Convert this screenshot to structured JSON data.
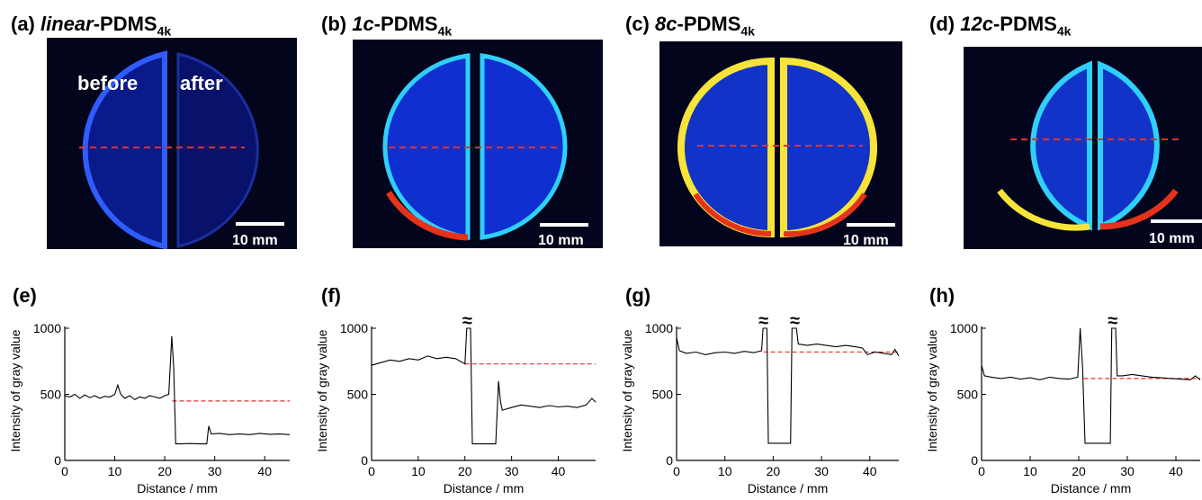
{
  "panels": {
    "a": {
      "letter": "(a)",
      "prefix": "linear",
      "base": "-PDMS",
      "sub": "4k"
    },
    "b": {
      "letter": "(b)",
      "prefix": "1c",
      "base": "-PDMS",
      "sub": "4k"
    },
    "c": {
      "letter": "(c)",
      "prefix": "8c",
      "base": "-PDMS",
      "sub": "4k"
    },
    "d": {
      "letter": "(d)",
      "prefix": "12c",
      "base": "-PDMS",
      "sub": "4k"
    }
  },
  "photo_labels": {
    "before": "before",
    "after": "after",
    "scale": "10 mm"
  },
  "colors": {
    "photo_bg": "#02051c",
    "disc_blue": "#1233c8",
    "rim_cyan": "#2fd0ff",
    "rim_green": "#9be23a",
    "rim_yellow": "#f6e43a",
    "rim_red": "#e5321c",
    "ref_line": "#e8312a",
    "trace": "#000000"
  },
  "chart_data": [
    {
      "label": "(e)",
      "type": "line",
      "xlabel": "Distance / mm",
      "ylabel": "Intensity of gray value",
      "xlim": [
        0,
        45
      ],
      "ylim": [
        0,
        1000
      ],
      "xticks": [
        0,
        10,
        20,
        30,
        40
      ],
      "yticks": [
        0,
        500,
        1000
      ],
      "break_marks": [],
      "reference_line": {
        "y": 450,
        "x_start": 21.5,
        "x_end": 45
      },
      "series": [
        {
          "values": [
            [
              0,
              490
            ],
            [
              1,
              480
            ],
            [
              2,
              500
            ],
            [
              3,
              470
            ],
            [
              4,
              495
            ],
            [
              5,
              475
            ],
            [
              6,
              490
            ],
            [
              7,
              470
            ],
            [
              8,
              485
            ],
            [
              9,
              480
            ],
            [
              10,
              500
            ],
            [
              10.6,
              570
            ],
            [
              11.2,
              500
            ],
            [
              12,
              470
            ],
            [
              13,
              490
            ],
            [
              14,
              460
            ],
            [
              15,
              480
            ],
            [
              16,
              470
            ],
            [
              17,
              490
            ],
            [
              18,
              480
            ],
            [
              19,
              470
            ],
            [
              20,
              490
            ],
            [
              20.8,
              500
            ],
            [
              21.4,
              940
            ],
            [
              21.8,
              700
            ],
            [
              22.2,
              125
            ],
            [
              23,
              125
            ],
            [
              25,
              128
            ],
            [
              27,
              125
            ],
            [
              28.4,
              125
            ],
            [
              28.8,
              260
            ],
            [
              29.3,
              200
            ],
            [
              31,
              205
            ],
            [
              33,
              195
            ],
            [
              35,
              200
            ],
            [
              37,
              195
            ],
            [
              39,
              205
            ],
            [
              41,
              198
            ],
            [
              43,
              200
            ],
            [
              45,
              195
            ]
          ]
        }
      ]
    },
    {
      "label": "(f)",
      "type": "line",
      "xlabel": "Distance / mm",
      "ylabel": "Intensity of gray value",
      "xlim": [
        0,
        48
      ],
      "ylim": [
        0,
        1000
      ],
      "xticks": [
        0,
        10,
        20,
        30,
        40
      ],
      "yticks": [
        0,
        500,
        1000
      ],
      "break_marks": [
        20.5
      ],
      "reference_line": {
        "y": 730,
        "x_start": 20,
        "x_end": 48
      },
      "series": [
        {
          "values": [
            [
              0,
              720
            ],
            [
              2,
              740
            ],
            [
              4,
              760
            ],
            [
              6,
              750
            ],
            [
              8,
              770
            ],
            [
              10,
              760
            ],
            [
              12,
              790
            ],
            [
              14,
              770
            ],
            [
              16,
              780
            ],
            [
              18,
              770
            ],
            [
              19.5,
              740
            ],
            [
              20,
              730
            ],
            [
              20.4,
              1000
            ],
            [
              21.2,
              1000
            ],
            [
              21.6,
              125
            ],
            [
              23,
              125
            ],
            [
              25,
              125
            ],
            [
              26.6,
              125
            ],
            [
              27.2,
              600
            ],
            [
              27.6,
              450
            ],
            [
              28,
              380
            ],
            [
              30,
              400
            ],
            [
              32,
              420
            ],
            [
              34,
              410
            ],
            [
              36,
              400
            ],
            [
              38,
              415
            ],
            [
              40,
              405
            ],
            [
              42,
              410
            ],
            [
              44,
              400
            ],
            [
              46,
              420
            ],
            [
              47.2,
              470
            ],
            [
              48,
              440
            ]
          ]
        }
      ]
    },
    {
      "label": "(g)",
      "type": "line",
      "xlabel": "Distance / mm",
      "ylabel": "Intensity of gray value",
      "xlim": [
        0,
        46
      ],
      "ylim": [
        0,
        1000
      ],
      "xticks": [
        0,
        10,
        20,
        30,
        40
      ],
      "yticks": [
        0,
        500,
        1000
      ],
      "break_marks": [
        18,
        24.5
      ],
      "reference_line": {
        "y": 820,
        "x_start": 18,
        "x_end": 46
      },
      "series": [
        {
          "values": [
            [
              0,
              930
            ],
            [
              0.6,
              830
            ],
            [
              2,
              810
            ],
            [
              4,
              820
            ],
            [
              6,
              800
            ],
            [
              8,
              815
            ],
            [
              10,
              820
            ],
            [
              12,
              810
            ],
            [
              14,
              825
            ],
            [
              16,
              815
            ],
            [
              17.6,
              830
            ],
            [
              17.9,
              1000
            ],
            [
              18.7,
              1000
            ],
            [
              19,
              130
            ],
            [
              21,
              130
            ],
            [
              23.6,
              130
            ],
            [
              23.9,
              1000
            ],
            [
              24.8,
              1000
            ],
            [
              25.2,
              880
            ],
            [
              27,
              870
            ],
            [
              29,
              880
            ],
            [
              31,
              870
            ],
            [
              33,
              860
            ],
            [
              35,
              870
            ],
            [
              37,
              860
            ],
            [
              38.5,
              850
            ],
            [
              39.5,
              800
            ],
            [
              41,
              820
            ],
            [
              43,
              810
            ],
            [
              44.5,
              800
            ],
            [
              45.2,
              840
            ],
            [
              46,
              790
            ]
          ]
        }
      ]
    },
    {
      "label": "(h)",
      "type": "line",
      "xlabel": "Distance / mm",
      "ylabel": "Intensity of gray value",
      "xlim": [
        0,
        45
      ],
      "ylim": [
        0,
        1000
      ],
      "xticks": [
        0,
        10,
        20,
        30,
        40
      ],
      "yticks": [
        0,
        500,
        1000
      ],
      "break_marks": [
        27
      ],
      "reference_line": {
        "y": 620,
        "x_start": 21,
        "x_end": 45
      },
      "series": [
        {
          "values": [
            [
              0,
              720
            ],
            [
              0.6,
              640
            ],
            [
              2,
              630
            ],
            [
              4,
              620
            ],
            [
              6,
              630
            ],
            [
              8,
              615
            ],
            [
              10,
              625
            ],
            [
              12,
              610
            ],
            [
              14,
              630
            ],
            [
              16,
              620
            ],
            [
              18,
              615
            ],
            [
              19.8,
              630
            ],
            [
              20.3,
              1000
            ],
            [
              20.8,
              700
            ],
            [
              21.3,
              130
            ],
            [
              23,
              130
            ],
            [
              25,
              130
            ],
            [
              26.5,
              130
            ],
            [
              26.8,
              1000
            ],
            [
              27.6,
              1000
            ],
            [
              27.9,
              640
            ],
            [
              29,
              640
            ],
            [
              31,
              650
            ],
            [
              33,
              640
            ],
            [
              35,
              630
            ],
            [
              37,
              625
            ],
            [
              39,
              620
            ],
            [
              41,
              615
            ],
            [
              43,
              610
            ],
            [
              44,
              640
            ],
            [
              45,
              610
            ]
          ]
        }
      ]
    }
  ]
}
